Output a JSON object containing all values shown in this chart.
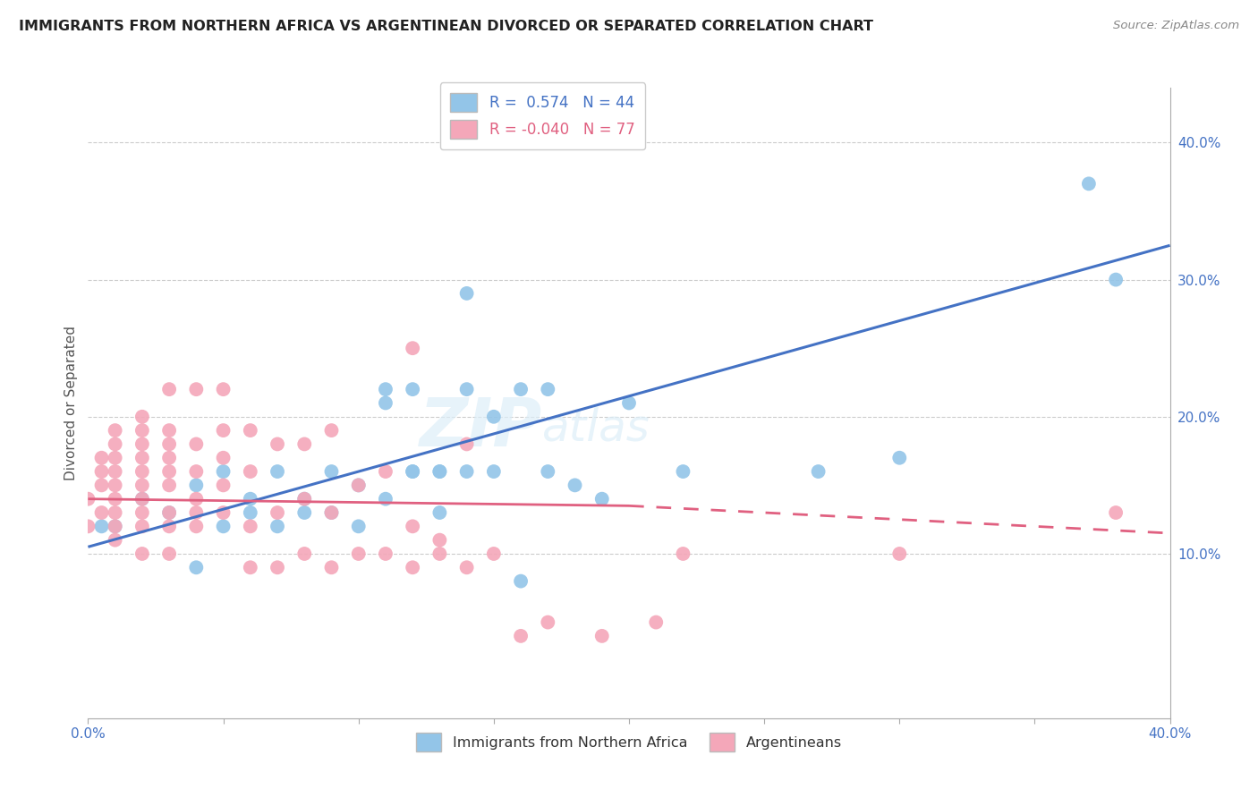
{
  "title": "IMMIGRANTS FROM NORTHERN AFRICA VS ARGENTINEAN DIVORCED OR SEPARATED CORRELATION CHART",
  "source": "Source: ZipAtlas.com",
  "ylabel": "Divorced or Separated",
  "xlim": [
    0.0,
    0.4
  ],
  "ylim": [
    -0.02,
    0.44
  ],
  "xticks": [
    0.0,
    0.05,
    0.1,
    0.15,
    0.2,
    0.25,
    0.3,
    0.35,
    0.4
  ],
  "yticks_right": [
    0.1,
    0.2,
    0.3,
    0.4
  ],
  "ytick_right_labels": [
    "10.0%",
    "20.0%",
    "30.0%",
    "40.0%"
  ],
  "R_blue": 0.574,
  "N_blue": 44,
  "R_pink": -0.04,
  "N_pink": 77,
  "blue_color": "#93c5e8",
  "pink_color": "#f4a7b9",
  "blue_line_color": "#4472c4",
  "pink_line_color": "#e06080",
  "watermark_zip": "ZIP",
  "watermark_atlas": "atlas",
  "legend_label_blue": "Immigrants from Northern Africa",
  "legend_label_pink": "Argentineans",
  "blue_scatter_x": [
    0.005,
    0.01,
    0.02,
    0.03,
    0.04,
    0.04,
    0.05,
    0.05,
    0.06,
    0.06,
    0.07,
    0.07,
    0.08,
    0.08,
    0.09,
    0.09,
    0.1,
    0.1,
    0.11,
    0.11,
    0.11,
    0.12,
    0.12,
    0.12,
    0.13,
    0.13,
    0.13,
    0.14,
    0.14,
    0.14,
    0.15,
    0.15,
    0.16,
    0.16,
    0.17,
    0.17,
    0.18,
    0.19,
    0.2,
    0.22,
    0.27,
    0.3,
    0.37,
    0.38
  ],
  "blue_scatter_y": [
    0.12,
    0.12,
    0.14,
    0.13,
    0.09,
    0.15,
    0.12,
    0.16,
    0.13,
    0.14,
    0.12,
    0.16,
    0.13,
    0.14,
    0.13,
    0.16,
    0.12,
    0.15,
    0.22,
    0.21,
    0.14,
    0.16,
    0.16,
    0.22,
    0.16,
    0.13,
    0.16,
    0.29,
    0.16,
    0.22,
    0.16,
    0.2,
    0.08,
    0.22,
    0.16,
    0.22,
    0.15,
    0.14,
    0.21,
    0.16,
    0.16,
    0.17,
    0.37,
    0.3
  ],
  "pink_scatter_x": [
    0.0,
    0.0,
    0.005,
    0.005,
    0.005,
    0.005,
    0.01,
    0.01,
    0.01,
    0.01,
    0.01,
    0.01,
    0.01,
    0.01,
    0.01,
    0.02,
    0.02,
    0.02,
    0.02,
    0.02,
    0.02,
    0.02,
    0.02,
    0.02,
    0.02,
    0.03,
    0.03,
    0.03,
    0.03,
    0.03,
    0.03,
    0.03,
    0.03,
    0.03,
    0.04,
    0.04,
    0.04,
    0.04,
    0.04,
    0.04,
    0.05,
    0.05,
    0.05,
    0.05,
    0.05,
    0.06,
    0.06,
    0.06,
    0.06,
    0.07,
    0.07,
    0.07,
    0.08,
    0.08,
    0.08,
    0.09,
    0.09,
    0.09,
    0.1,
    0.1,
    0.11,
    0.11,
    0.12,
    0.12,
    0.12,
    0.13,
    0.13,
    0.14,
    0.14,
    0.15,
    0.16,
    0.17,
    0.19,
    0.21,
    0.22,
    0.3,
    0.38
  ],
  "pink_scatter_y": [
    0.12,
    0.14,
    0.13,
    0.15,
    0.16,
    0.17,
    0.11,
    0.12,
    0.13,
    0.14,
    0.15,
    0.16,
    0.17,
    0.18,
    0.19,
    0.1,
    0.12,
    0.13,
    0.14,
    0.15,
    0.16,
    0.17,
    0.18,
    0.19,
    0.2,
    0.1,
    0.12,
    0.13,
    0.15,
    0.16,
    0.17,
    0.18,
    0.19,
    0.22,
    0.12,
    0.13,
    0.14,
    0.16,
    0.18,
    0.22,
    0.13,
    0.15,
    0.17,
    0.19,
    0.22,
    0.09,
    0.12,
    0.16,
    0.19,
    0.09,
    0.13,
    0.18,
    0.1,
    0.14,
    0.18,
    0.09,
    0.13,
    0.19,
    0.1,
    0.15,
    0.1,
    0.16,
    0.09,
    0.12,
    0.25,
    0.1,
    0.11,
    0.09,
    0.18,
    0.1,
    0.04,
    0.05,
    0.04,
    0.05,
    0.1,
    0.1,
    0.13
  ],
  "blue_line_x0": 0.0,
  "blue_line_y0": 0.105,
  "blue_line_x1": 0.4,
  "blue_line_y1": 0.325,
  "pink_line_solid_x0": 0.0,
  "pink_line_solid_y0": 0.14,
  "pink_line_solid_x1": 0.2,
  "pink_line_solid_y1": 0.135,
  "pink_line_dash_x0": 0.2,
  "pink_line_dash_y0": 0.135,
  "pink_line_dash_x1": 0.4,
  "pink_line_dash_y1": 0.115
}
